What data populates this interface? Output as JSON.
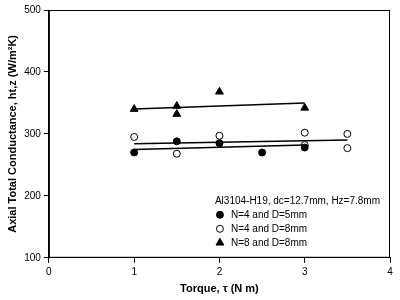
{
  "chart_data": {
    "type": "scatter",
    "x_label": "Torque, τ (N m)",
    "y_label": "Axial Total Conductance, ht,z (W/m²K)",
    "annotations": [
      "Al3104-H19, dc=12.7mm, Hz=7.8mm"
    ],
    "xlim": [
      0,
      4
    ],
    "xticks": [
      0,
      1,
      2,
      3,
      4
    ],
    "ylim": [
      100,
      500
    ],
    "yticks": [
      100,
      200,
      300,
      400,
      500
    ],
    "grid": false,
    "legend": "lower right",
    "series": [
      {
        "name": "N=4 and D=5mm",
        "color": "#000000",
        "marker": "circle",
        "x": [
          1,
          1.5,
          2,
          2.5,
          3
        ],
        "values": [
          270,
          288,
          285,
          270,
          278
        ],
        "trend": {
          "x": [
            1,
            3
          ],
          "values": [
            275,
            282
          ]
        }
      },
      {
        "name": "N=4 and D=8mm",
        "color": "#000000",
        "marker": "open_circle",
        "x": [
          1,
          1.5,
          2,
          3,
          3,
          3.5,
          3.5
        ],
        "values": [
          295,
          268,
          297,
          302,
          282,
          300,
          277
        ],
        "trend": {
          "x": [
            1,
            3.5
          ],
          "values": [
            284,
            290
          ]
        }
      },
      {
        "name": "N=8 and D=8mm",
        "color": "#000000",
        "marker": "triangle",
        "x": [
          1,
          1.5,
          1.5,
          2,
          3
        ],
        "values": [
          340,
          345,
          332,
          368,
          342
        ],
        "trend": {
          "x": [
            1,
            3
          ],
          "values": [
            340,
            350
          ]
        }
      }
    ]
  }
}
